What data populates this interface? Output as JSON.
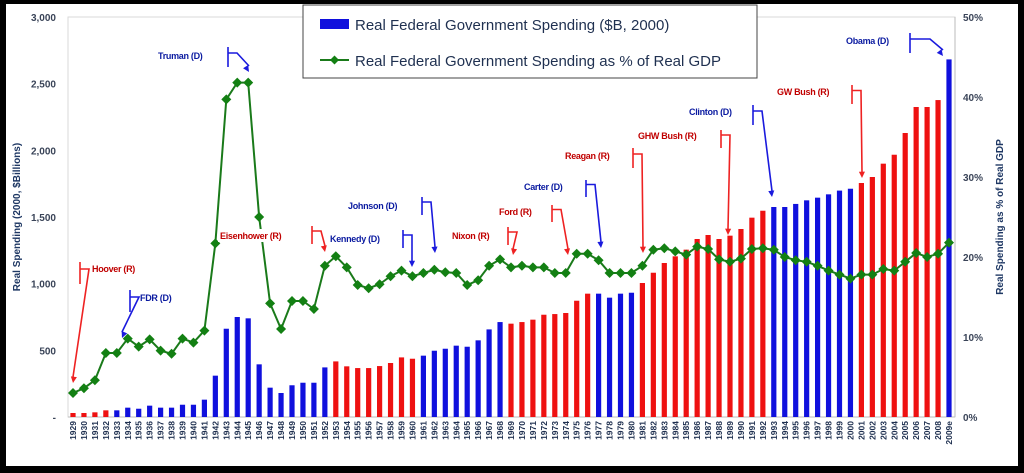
{
  "chart_data": {
    "type": "bar+line",
    "legend": {
      "placement": "top-center",
      "bar_label": "Real Federal Government Spending ($B, 2000)",
      "line_label": "Real Federal Government Spending as % of Real GDP"
    },
    "ylabel_left": "Real Spending (2000, $Billions)",
    "ylabel_right": "Real Spending as % of Real GDP",
    "ylim_left": [
      0,
      3000
    ],
    "ylim_right": [
      0,
      50
    ],
    "left_ticks": [
      "-",
      "500",
      "1,000",
      "1,500",
      "2,000",
      "2,500",
      "3,000"
    ],
    "right_ticks": [
      "0%",
      "10%",
      "20%",
      "30%",
      "40%",
      "50%"
    ],
    "colors": {
      "R": "#ee1111",
      "D": "#1010dd",
      "line": "#1a7a1a",
      "marker": "#138013"
    },
    "categories": [
      "1929",
      "1930",
      "1931",
      "1932",
      "1933",
      "1934",
      "1935",
      "1936",
      "1937",
      "1938",
      "1939",
      "1940",
      "1941",
      "1942",
      "1943",
      "1944",
      "1945",
      "1946",
      "1947",
      "1948",
      "1949",
      "1950",
      "1951",
      "1952",
      "1953",
      "1954",
      "1955",
      "1956",
      "1957",
      "1958",
      "1959",
      "1960",
      "1961",
      "1962",
      "1963",
      "1964",
      "1965",
      "1966",
      "1967",
      "1968",
      "1969",
      "1970",
      "1971",
      "1972",
      "1973",
      "1974",
      "1975",
      "1976",
      "1977",
      "1978",
      "1979",
      "1980",
      "1981",
      "1982",
      "1983",
      "1984",
      "1985",
      "1986",
      "1987",
      "1988",
      "1989",
      "1990",
      "1991",
      "1992",
      "1993",
      "1994",
      "1995",
      "1996",
      "1997",
      "1998",
      "1999",
      "2000",
      "2001",
      "2002",
      "2003",
      "2004",
      "2005",
      "2006",
      "2007",
      "2008",
      "2009e"
    ],
    "party": [
      "R",
      "R",
      "R",
      "R",
      "D",
      "D",
      "D",
      "D",
      "D",
      "D",
      "D",
      "D",
      "D",
      "D",
      "D",
      "D",
      "D",
      "D",
      "D",
      "D",
      "D",
      "D",
      "D",
      "D",
      "R",
      "R",
      "R",
      "R",
      "R",
      "R",
      "R",
      "R",
      "D",
      "D",
      "D",
      "D",
      "D",
      "D",
      "D",
      "D",
      "R",
      "R",
      "R",
      "R",
      "R",
      "R",
      "R",
      "R",
      "D",
      "D",
      "D",
      "D",
      "R",
      "R",
      "R",
      "R",
      "R",
      "R",
      "R",
      "R",
      "R",
      "R",
      "R",
      "R",
      "D",
      "D",
      "D",
      "D",
      "D",
      "D",
      "D",
      "D",
      "R",
      "R",
      "R",
      "R",
      "R",
      "R",
      "R",
      "R",
      "D"
    ],
    "spending": [
      30,
      30,
      35,
      50,
      50,
      70,
      62,
      85,
      70,
      70,
      92,
      92,
      130,
      310,
      662,
      750,
      740,
      395,
      220,
      180,
      238,
      257,
      257,
      372,
      417,
      380,
      367,
      367,
      382,
      405,
      447,
      437,
      460,
      497,
      512,
      535,
      527,
      575,
      657,
      712,
      700,
      712,
      730,
      767,
      772,
      780,
      872,
      925,
      925,
      895,
      925,
      932,
      1005,
      1082,
      1155,
      1205,
      1255,
      1335,
      1365,
      1335,
      1360,
      1410,
      1495,
      1547,
      1575,
      1575,
      1598,
      1625,
      1645,
      1670,
      1698,
      1712,
      1755,
      1800,
      1900,
      1967,
      2130,
      2325,
      2325,
      2377,
      2682
    ],
    "pct_gdp": [
      3.0,
      3.6,
      4.6,
      8.0,
      8.0,
      9.8,
      8.8,
      9.7,
      8.3,
      7.9,
      9.8,
      9.3,
      10.8,
      21.7,
      39.7,
      41.8,
      41.8,
      25.0,
      14.2,
      11.0,
      14.5,
      14.5,
      13.5,
      18.9,
      20.1,
      18.7,
      16.5,
      16.1,
      16.6,
      17.6,
      18.3,
      17.6,
      18.0,
      18.4,
      18.1,
      18.0,
      16.5,
      17.1,
      18.9,
      19.7,
      18.7,
      18.9,
      18.7,
      18.7,
      18.0,
      18.0,
      20.4,
      20.4,
      19.6,
      18.0,
      18.0,
      18.0,
      18.9,
      20.9,
      21.1,
      20.7,
      20.3,
      21.3,
      21.0,
      19.7,
      19.4,
      19.8,
      21.0,
      21.1,
      20.9,
      20.0,
      19.6,
      19.4,
      18.9,
      18.3,
      17.8,
      17.3,
      17.8,
      17.8,
      18.5,
      18.3,
      19.4,
      20.5,
      20.0,
      20.4,
      21.8
    ],
    "annotations": [
      {
        "label": "Hoover (R)",
        "party": "R"
      },
      {
        "label": "FDR (D)",
        "party": "D"
      },
      {
        "label": "Truman (D)",
        "party": "D"
      },
      {
        "label": "Eisenhower (R)",
        "party": "R"
      },
      {
        "label": "Kennedy (D)",
        "party": "D"
      },
      {
        "label": "Johnson (D)",
        "party": "D"
      },
      {
        "label": "Nixon (R)",
        "party": "R"
      },
      {
        "label": "Ford (R)",
        "party": "R"
      },
      {
        "label": "Carter (D)",
        "party": "D"
      },
      {
        "label": "Reagan (R)",
        "party": "R"
      },
      {
        "label": "GHW Bush (R)",
        "party": "R"
      },
      {
        "label": "Clinton (D)",
        "party": "D"
      },
      {
        "label": "GW Bush (R)",
        "party": "R"
      },
      {
        "label": "Obama (D)",
        "party": "D"
      }
    ]
  }
}
